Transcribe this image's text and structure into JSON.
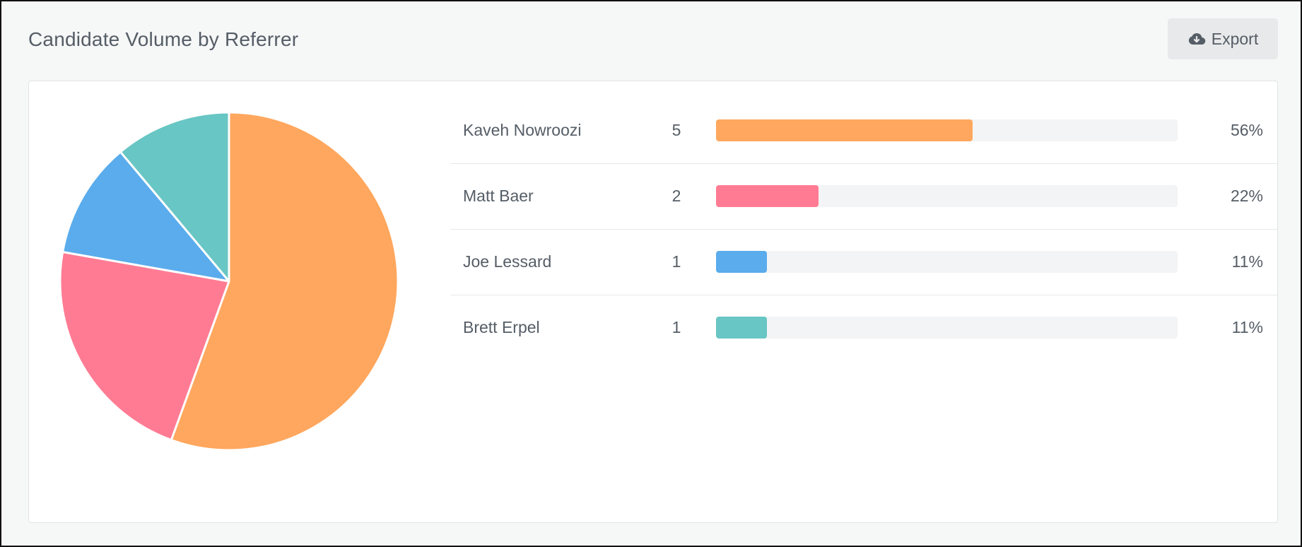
{
  "header": {
    "title": "Candidate Volume by Referrer",
    "export_label": "Export",
    "export_icon": "cloud-download-icon"
  },
  "chart_data": [
    {
      "type": "pie",
      "labels": [
        "Kaveh Nowroozi",
        "Matt Baer",
        "Joe Lessard",
        "Brett Erpel"
      ],
      "values": [
        5,
        2,
        1,
        1
      ],
      "colors": [
        "#ffa75e",
        "#ff7b93",
        "#5aacec",
        "#68c6c4"
      ]
    },
    {
      "type": "bar",
      "orientation": "horizontal",
      "categories": [
        "Kaveh Nowroozi",
        "Matt Baer",
        "Joe Lessard",
        "Brett Erpel"
      ],
      "values": [
        5,
        2,
        1,
        1
      ],
      "max": 9,
      "colors": [
        "#ffa75e",
        "#ff7b93",
        "#5aacec",
        "#68c6c4"
      ]
    }
  ],
  "rows": [
    {
      "name": "Kaveh Nowroozi",
      "count": "5",
      "percent_label": "56%",
      "fill_fraction": 0.556,
      "color": "#ffa75e"
    },
    {
      "name": "Matt Baer",
      "count": "2",
      "percent_label": "22%",
      "fill_fraction": 0.222,
      "color": "#ff7b93"
    },
    {
      "name": "Joe Lessard",
      "count": "1",
      "percent_label": "11%",
      "fill_fraction": 0.111,
      "color": "#5aacec"
    },
    {
      "name": "Brett Erpel",
      "count": "1",
      "percent_label": "11%",
      "fill_fraction": 0.111,
      "color": "#68c6c4"
    }
  ]
}
